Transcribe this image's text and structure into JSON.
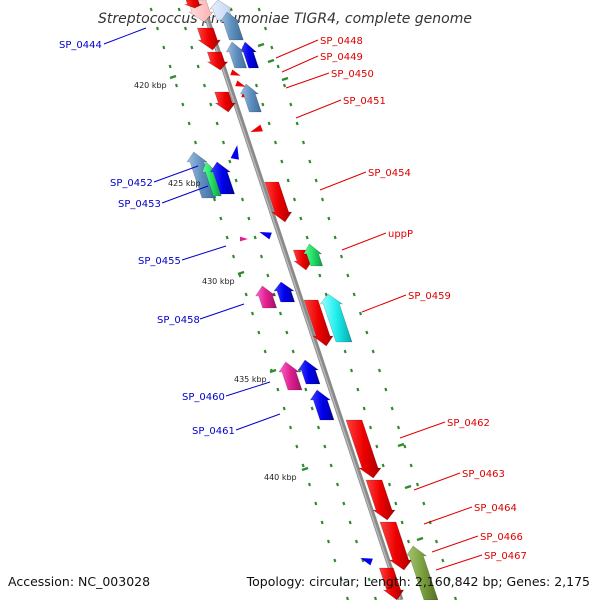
{
  "title": "Streptococcus pneumoniae TIGR4, complete genome",
  "accession_text": "Accession: NC_003028",
  "topology_text": "Topology: circular; Length: 2,160,842 bp; Genes: 2,175",
  "colors": {
    "backbone": "#8a8a8a",
    "reverse_label": "#0000cc",
    "forward_label": "#dd0000",
    "tick": "#228b22"
  },
  "ticks": [
    "420 kbp",
    "425 kbp",
    "430 kbp",
    "435 kbp",
    "440 kbp"
  ],
  "reverse_labels": [
    "SP_0444",
    "SP_0452",
    "SP_0453",
    "SP_0455",
    "SP_0458",
    "SP_0460",
    "SP_0461"
  ],
  "forward_labels": [
    "SP_0448",
    "SP_0449",
    "SP_0450",
    "SP_0451",
    "SP_0454",
    "uppP",
    "SP_0459",
    "SP_0462",
    "SP_0463",
    "SP_0464",
    "SP_0466",
    "SP_0467"
  ]
}
